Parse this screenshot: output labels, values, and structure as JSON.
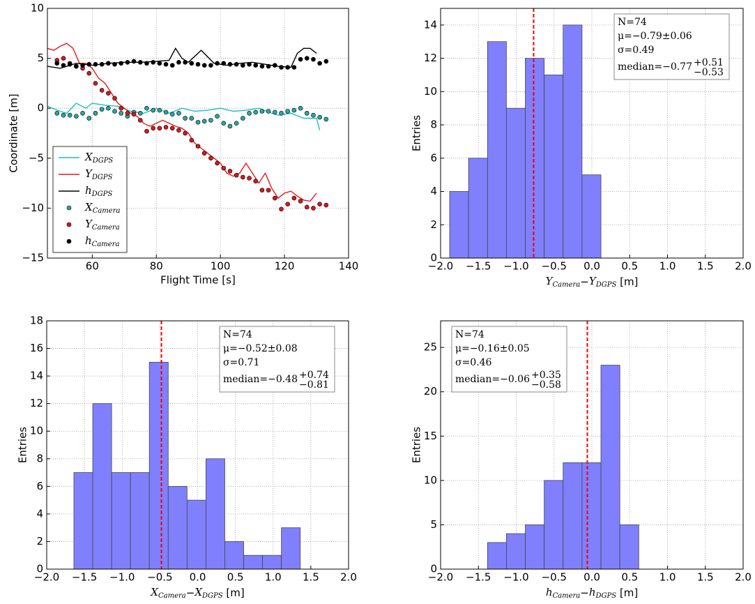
{
  "chart_data": [
    {
      "type": "line",
      "xlabel": "Flight Time [s]",
      "ylabel": "Coordinate [m]",
      "xlim": [
        46,
        140
      ],
      "ylim": [
        -15,
        10
      ],
      "xticks": [
        60,
        80,
        100,
        120,
        140
      ],
      "yticks": [
        {
          "value": -15,
          "label": "−15"
        },
        {
          "value": -10,
          "label": "−10"
        },
        {
          "value": -5,
          "label": "−5"
        },
        0,
        5,
        10
      ],
      "grid": true,
      "legend": "lower left",
      "series": [
        {
          "name": "X",
          "name_sub": "DGPS",
          "mode": "line",
          "color": "#1fbfbf",
          "x": [
            46,
            50,
            52,
            55,
            58,
            60,
            64,
            68,
            72,
            76,
            80,
            84,
            88,
            92,
            96,
            100,
            104,
            108,
            112,
            116,
            118,
            122,
            126,
            130,
            131
          ],
          "values": [
            0.2,
            -0.3,
            -0.5,
            0.5,
            0,
            0.5,
            0.3,
            0.2,
            -0.3,
            -0.5,
            0,
            -0.5,
            0,
            -0.3,
            -0.2,
            0,
            -0.3,
            -0.2,
            0,
            -0.5,
            -0.7,
            -0.5,
            -1,
            -1,
            -2.2
          ]
        },
        {
          "name": "Y",
          "name_sub": "DGPS",
          "mode": "line",
          "color": "#e31a1c",
          "x": [
            46,
            48,
            50,
            52,
            54,
            56,
            58,
            60,
            62,
            64,
            66,
            68,
            70,
            72,
            74,
            76,
            78,
            80,
            82,
            84,
            86,
            88,
            90,
            92,
            94,
            96,
            98,
            100,
            102,
            104,
            106,
            108,
            110,
            112,
            114,
            116,
            118,
            120,
            122,
            124,
            126,
            128,
            130
          ],
          "values": [
            6,
            5.8,
            6.2,
            6.5,
            6,
            4.5,
            4.5,
            4,
            3,
            2.5,
            1.5,
            0.5,
            0,
            -0.5,
            -0.8,
            -1.5,
            -1.8,
            -1.5,
            -1.2,
            -1.5,
            -1.8,
            -2,
            -2.5,
            -3.5,
            -4,
            -4.5,
            -5,
            -5.5,
            -6.5,
            -6.8,
            -6.5,
            -5.5,
            -6.5,
            -7.5,
            -6.5,
            -8,
            -9,
            -8.5,
            -8.3,
            -8.8,
            -9.2,
            -9.3,
            -8.5
          ]
        },
        {
          "name": "h",
          "name_sub": "DGPS",
          "mode": "line",
          "color": "#000000",
          "x": [
            46,
            50,
            55,
            60,
            65,
            70,
            75,
            80,
            84,
            86,
            88,
            90,
            94,
            98,
            102,
            106,
            110,
            114,
            118,
            122,
            124,
            126,
            128,
            130
          ],
          "values": [
            4.2,
            4.0,
            4.5,
            4.3,
            4.5,
            4.6,
            4.6,
            4.7,
            4.8,
            6,
            5,
            4.6,
            5.8,
            4.5,
            4.3,
            4.5,
            4.6,
            4.4,
            4.2,
            4.1,
            5.5,
            6,
            6,
            5.5
          ]
        },
        {
          "name": "X",
          "name_sub": "Camera",
          "mode": "scatter",
          "color": "#2ca6a4",
          "x": [
            49,
            51,
            53,
            55,
            57,
            59,
            61,
            63,
            65,
            67,
            69,
            71,
            73,
            75,
            77,
            79,
            81,
            83,
            85,
            87,
            89,
            91,
            93,
            95,
            97,
            99,
            101,
            103,
            105,
            107,
            109,
            111,
            113,
            115,
            117,
            119,
            121,
            123,
            125,
            127,
            129,
            131,
            133
          ],
          "values": [
            -0.5,
            -0.7,
            -0.7,
            -0.8,
            -0.5,
            -1.0,
            -0.5,
            -0.1,
            0,
            -0.3,
            -0.5,
            -0.8,
            -0.4,
            -0.5,
            0,
            -0.2,
            -0.2,
            -0.4,
            -0.6,
            -0.5,
            -1.0,
            -1.0,
            -1.4,
            -1.3,
            -1.2,
            -0.8,
            -1.5,
            -1.8,
            -1.5,
            -1.0,
            -0.5,
            -0.4,
            -0.3,
            -0.3,
            -0.4,
            -0.5,
            -0.3,
            -0.2,
            0,
            -0.5,
            -0.7,
            -0.9,
            -1.1
          ]
        },
        {
          "name": "Y",
          "name_sub": "Camera",
          "mode": "scatter",
          "color": "#d7191c",
          "x": [
            49,
            51,
            53,
            55,
            57,
            59,
            61,
            63,
            65,
            67,
            69,
            71,
            73,
            75,
            77,
            79,
            81,
            83,
            85,
            87,
            89,
            91,
            93,
            95,
            97,
            99,
            101,
            103,
            105,
            107,
            109,
            111,
            113,
            115,
            117,
            119,
            121,
            123,
            125,
            127,
            129,
            131,
            133
          ],
          "values": [
            4.8,
            5,
            4.5,
            4.2,
            4,
            3.5,
            2.5,
            1.8,
            1.5,
            1.0,
            0,
            -0.5,
            -0.6,
            -1.2,
            -2.3,
            -2.0,
            -2.0,
            -1.9,
            -2.0,
            -2.2,
            -2.5,
            -3.2,
            -3.8,
            -4.5,
            -5.0,
            -5.5,
            -6.0,
            -6.3,
            -6.7,
            -6.9,
            -7.0,
            -7.3,
            -8.2,
            -8.2,
            -9.0,
            -10.1,
            -9.6,
            -9.0,
            -9.3,
            -9.9,
            -10.0,
            -9.6,
            -9.7
          ]
        },
        {
          "name": "h",
          "name_sub": "Camera",
          "mode": "scatter",
          "color": "#000000",
          "x": [
            49,
            51,
            53,
            55,
            57,
            59,
            61,
            63,
            65,
            67,
            69,
            71,
            73,
            75,
            77,
            79,
            81,
            83,
            85,
            87,
            89,
            91,
            93,
            95,
            97,
            99,
            101,
            103,
            105,
            107,
            109,
            111,
            113,
            115,
            117,
            119,
            121,
            123,
            125,
            127,
            129,
            131,
            133
          ],
          "values": [
            4.5,
            4.3,
            4.4,
            4.2,
            4.3,
            4.4,
            4.4,
            4.4,
            4.5,
            4.4,
            4.5,
            4.6,
            4.7,
            4.6,
            4.5,
            4.6,
            4.5,
            4.4,
            4.3,
            4.6,
            4.6,
            4.5,
            4.4,
            4.3,
            4.3,
            4.5,
            4.5,
            4.4,
            4.4,
            4.3,
            4.4,
            4.3,
            4.2,
            4.2,
            4.3,
            4.1,
            4.1,
            4.1,
            4.9,
            5.0,
            4.9,
            4.5,
            4.7
          ]
        }
      ]
    },
    {
      "type": "histogram",
      "ylabel": "Entries",
      "xlabel": [
        {
          "text": "Y",
          "math": true
        },
        {
          "text": "Camera",
          "math": true,
          "sub": true
        },
        {
          "text": "−"
        },
        {
          "text": "Y",
          "math": true
        },
        {
          "text": "DGPS",
          "math": true,
          "sub": true
        },
        {
          "text": " [m]"
        }
      ],
      "xlim": [
        -2,
        2
      ],
      "ylim": [
        0,
        15
      ],
      "xticks": [
        {
          "value": -2,
          "label": "−2.0"
        },
        {
          "value": -1.5,
          "label": "−1.5"
        },
        {
          "value": -1,
          "label": "−1.0"
        },
        {
          "value": -0.5,
          "label": "−0.5"
        },
        {
          "value": 0,
          "label": "0.0"
        },
        0.5,
        {
          "value": 1,
          "label": "1.0"
        },
        1.5,
        {
          "value": 2,
          "label": "2.0"
        }
      ],
      "yticks": [
        0,
        2,
        4,
        6,
        8,
        10,
        12,
        14
      ],
      "grid": true,
      "color": "#8080ff",
      "bins": [
        -1.88,
        -1.63,
        -1.38,
        -1.13,
        -0.88,
        -0.63,
        -0.38,
        -0.13,
        0.12
      ],
      "values": [
        4,
        6,
        13,
        9,
        12,
        11,
        14,
        5
      ],
      "median_line": -0.77,
      "stats": [
        "N=74",
        "μ=−0.79±0.06",
        "σ=0.49"
      ],
      "median": "median=−0.77",
      "median_up": "+0.51",
      "median_down": "−0.53",
      "stats_loc": "upper right"
    },
    {
      "type": "histogram",
      "ylabel": "Entries",
      "xlabel": [
        {
          "text": "X",
          "math": true
        },
        {
          "text": "Camera",
          "math": true,
          "sub": true
        },
        {
          "text": "−"
        },
        {
          "text": "X",
          "math": true
        },
        {
          "text": "DGPS",
          "math": true,
          "sub": true
        },
        {
          "text": " [m]"
        }
      ],
      "xlim": [
        -2,
        2
      ],
      "ylim": [
        0,
        18
      ],
      "xticks": [
        {
          "value": -2,
          "label": "−2.0"
        },
        {
          "value": -1.5,
          "label": "−1.5"
        },
        {
          "value": -1,
          "label": "−1.0"
        },
        {
          "value": -0.5,
          "label": "−0.5"
        },
        {
          "value": 0,
          "label": "0.0"
        },
        0.5,
        {
          "value": 1,
          "label": "1.0"
        },
        1.5,
        {
          "value": 2,
          "label": "2.0"
        }
      ],
      "yticks": [
        0,
        2,
        4,
        6,
        8,
        10,
        12,
        14,
        16,
        18
      ],
      "grid": true,
      "color": "#8080ff",
      "bins": [
        -1.64,
        -1.39,
        -1.14,
        -0.89,
        -0.64,
        -0.39,
        -0.14,
        0.11,
        0.36,
        0.61,
        0.86,
        1.11,
        1.36
      ],
      "values": [
        7,
        12,
        7,
        7,
        15,
        6,
        5,
        8,
        2,
        1,
        1,
        3
      ],
      "median_line": -0.48,
      "stats": [
        "N=74",
        "μ=−0.52±0.08",
        "σ=0.71"
      ],
      "median": "median=−0.48",
      "median_up": "+0.74",
      "median_down": "−0.81",
      "stats_loc": "upper right"
    },
    {
      "type": "histogram",
      "ylabel": "Entries",
      "xlabel": [
        {
          "text": "h",
          "math": true
        },
        {
          "text": "Camera",
          "math": true,
          "sub": true
        },
        {
          "text": "−"
        },
        {
          "text": "h",
          "math": true
        },
        {
          "text": "DGPS",
          "math": true,
          "sub": true
        },
        {
          "text": " [m]"
        }
      ],
      "xlim": [
        -2,
        2
      ],
      "ylim": [
        0,
        28
      ],
      "xticks": [
        {
          "value": -2,
          "label": "−2.0"
        },
        {
          "value": -1.5,
          "label": "−1.5"
        },
        {
          "value": -1,
          "label": "−1.0"
        },
        {
          "value": -0.5,
          "label": "−0.5"
        },
        {
          "value": 0,
          "label": "0.0"
        },
        0.5,
        {
          "value": 1,
          "label": "1.0"
        },
        1.5,
        {
          "value": 2,
          "label": "2.0"
        }
      ],
      "yticks": [
        0,
        5,
        10,
        15,
        20,
        25
      ],
      "grid": true,
      "color": "#8080ff",
      "bins": [
        -1.38,
        -1.13,
        -0.88,
        -0.63,
        -0.38,
        -0.13,
        0.12,
        0.37,
        0.62
      ],
      "values": [
        3,
        4,
        5,
        10,
        12,
        12,
        23,
        5
      ],
      "median_line": -0.06,
      "stats": [
        "N=74",
        "μ=−0.16±0.05",
        "σ=0.46"
      ],
      "median": "median=−0.06",
      "median_up": "+0.35",
      "median_down": "−0.58",
      "stats_loc": "upper left"
    }
  ]
}
